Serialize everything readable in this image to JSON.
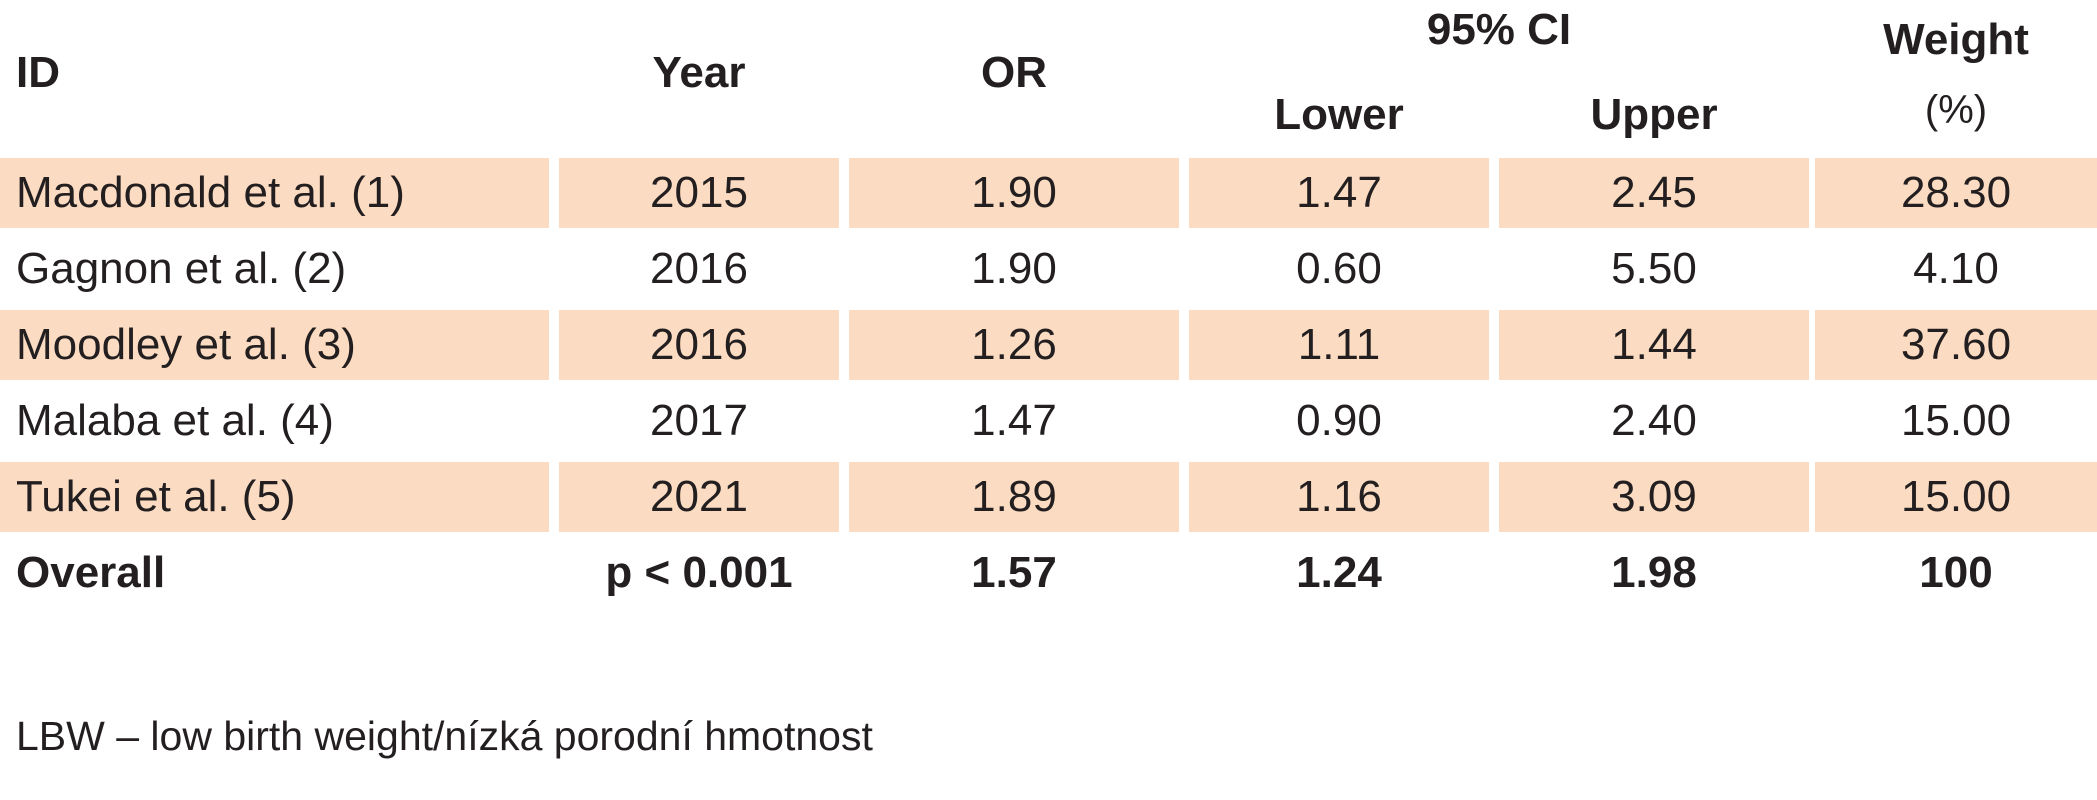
{
  "header": {
    "id": "ID",
    "year": "Year",
    "or": "OR",
    "ci": "95% CI",
    "lower": "Lower",
    "upper": "Upper",
    "weight": "Weight",
    "weight_unit": "(%)"
  },
  "rows": [
    {
      "id": "Macdonald et al. (1)",
      "year": "2015",
      "or": "1.90",
      "lower": "1.47",
      "upper": "2.45",
      "weight": "28.30"
    },
    {
      "id": "Gagnon et al. (2)",
      "year": "2016",
      "or": "1.90",
      "lower": "0.60",
      "upper": "5.50",
      "weight": "4.10"
    },
    {
      "id": "Moodley et al. (3)",
      "year": "2016",
      "or": "1.26",
      "lower": "1.11",
      "upper": "1.44",
      "weight": "37.60"
    },
    {
      "id": "Malaba et al. (4)",
      "year": "2017",
      "or": "1.47",
      "lower": "0.90",
      "upper": "2.40",
      "weight": "15.00"
    },
    {
      "id": "Tukei et al. (5)",
      "year": "2021",
      "or": "1.89",
      "lower": "1.16",
      "upper": "3.09",
      "weight": "15.00"
    }
  ],
  "overall": {
    "id": "Overall",
    "year": "p < 0.001",
    "or": "1.57",
    "lower": "1.24",
    "upper": "1.98",
    "weight": "100"
  },
  "footnote": "LBW – low birth weight/nízká porodní hmotnost",
  "colors": {
    "row_shade": "#fbdcc2",
    "text": "#231f20"
  }
}
